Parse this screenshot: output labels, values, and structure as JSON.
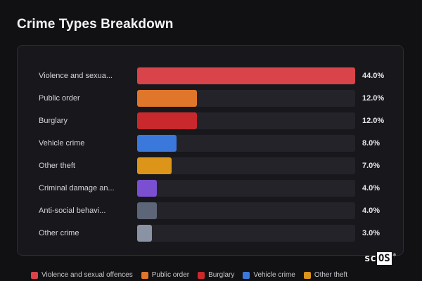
{
  "page": {
    "title": "Crime Types Breakdown"
  },
  "watermark": {
    "prefix": "sc",
    "boxed": "OS",
    "mark": "®"
  },
  "chart_data": {
    "type": "bar",
    "orientation": "horizontal",
    "xlim": [
      0,
      44
    ],
    "grid": false,
    "legend_position": "bottom",
    "rows": [
      {
        "label": "Violence and sexua...",
        "value": 44.0,
        "value_label": "44.0%",
        "color": "#d9434a"
      },
      {
        "label": "Public order",
        "value": 12.0,
        "value_label": "12.0%",
        "color": "#e0762a"
      },
      {
        "label": "Burglary",
        "value": 12.0,
        "value_label": "12.0%",
        "color": "#c9282d"
      },
      {
        "label": "Vehicle crime",
        "value": 8.0,
        "value_label": "8.0%",
        "color": "#3b78db"
      },
      {
        "label": "Other theft",
        "value": 7.0,
        "value_label": "7.0%",
        "color": "#dc9419"
      },
      {
        "label": "Criminal damage an...",
        "value": 4.0,
        "value_label": "4.0%",
        "color": "#7a4fd0"
      },
      {
        "label": "Anti-social behavi...",
        "value": 4.0,
        "value_label": "4.0%",
        "color": "#5d6678"
      },
      {
        "label": "Other crime",
        "value": 3.0,
        "value_label": "3.0%",
        "color": "#8a93a3"
      }
    ],
    "legend": [
      {
        "name": "Violence and sexual offences",
        "color": "#d9434a"
      },
      {
        "name": "Public order",
        "color": "#e0762a"
      },
      {
        "name": "Burglary",
        "color": "#c9282d"
      },
      {
        "name": "Vehicle crime",
        "color": "#3b78db"
      },
      {
        "name": "Other theft",
        "color": "#dc9419"
      }
    ]
  }
}
